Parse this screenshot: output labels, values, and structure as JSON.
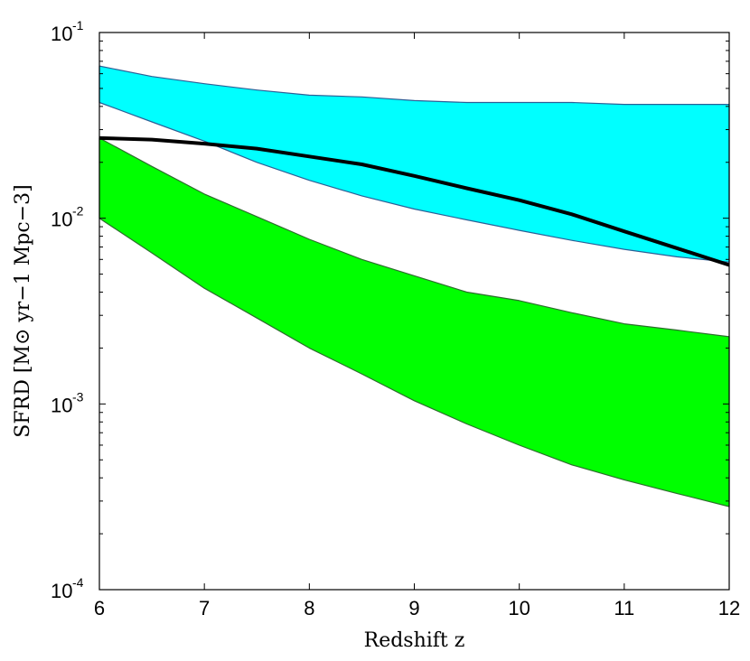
{
  "chart_data": {
    "type": "area",
    "xlabel": "Redshift z",
    "ylabel": "SFRD [M⊙ yr−1 Mpc−3]",
    "xlim": [
      6,
      12
    ],
    "ylim": [
      0.0001,
      0.1
    ],
    "yscale": "log",
    "x_ticks": [
      6,
      7,
      8,
      9,
      10,
      11,
      12
    ],
    "x_tick_labels": [
      "6",
      "7",
      "8",
      "9",
      "10",
      "11",
      "12"
    ],
    "y_ticks": [
      0.0001,
      0.001,
      0.01,
      0.1
    ],
    "y_tick_labels": [
      {
        "base": "10",
        "exp": "-4"
      },
      {
        "base": "10",
        "exp": "-3"
      },
      {
        "base": "10",
        "exp": "-2"
      },
      {
        "base": "10",
        "exp": "-1"
      }
    ],
    "grid": false,
    "legend": "none",
    "bands": [
      {
        "color": "#00ffff",
        "edge_color": "#2c5f96",
        "x": [
          6,
          6.5,
          7,
          7.5,
          8,
          8.5,
          9,
          9.5,
          10,
          10.5,
          11,
          11.5,
          12
        ],
        "upper": [
          0.066,
          0.058,
          0.053,
          0.049,
          0.046,
          0.045,
          0.043,
          0.042,
          0.042,
          0.042,
          0.041,
          0.041,
          0.041
        ],
        "lower": [
          0.042,
          0.033,
          0.026,
          0.02,
          0.016,
          0.0132,
          0.0112,
          0.0098,
          0.0086,
          0.0076,
          0.0068,
          0.0062,
          0.0058
        ]
      },
      {
        "color": "#00ff00",
        "edge_color": "#2c6e2c",
        "x": [
          6,
          6.5,
          7,
          7.5,
          8,
          8.5,
          9,
          9.5,
          10,
          10.5,
          11,
          11.5,
          12
        ],
        "upper": [
          0.027,
          0.019,
          0.0135,
          0.0102,
          0.0077,
          0.006,
          0.0049,
          0.004,
          0.0036,
          0.0031,
          0.0027,
          0.0025,
          0.0023
        ],
        "lower": [
          0.01,
          0.0065,
          0.0042,
          0.0029,
          0.002,
          0.00145,
          0.00104,
          0.00078,
          0.0006,
          0.00047,
          0.00039,
          0.00033,
          0.00028
        ]
      }
    ],
    "series": [
      {
        "color": "#000000",
        "x": [
          6,
          6.5,
          7,
          7.5,
          8,
          8.5,
          9,
          9.5,
          10,
          10.5,
          11,
          11.5,
          12
        ],
        "values": [
          0.027,
          0.0265,
          0.0252,
          0.0237,
          0.0215,
          0.0195,
          0.0169,
          0.0145,
          0.0125,
          0.0105,
          0.0085,
          0.0069,
          0.0056
        ]
      }
    ]
  }
}
